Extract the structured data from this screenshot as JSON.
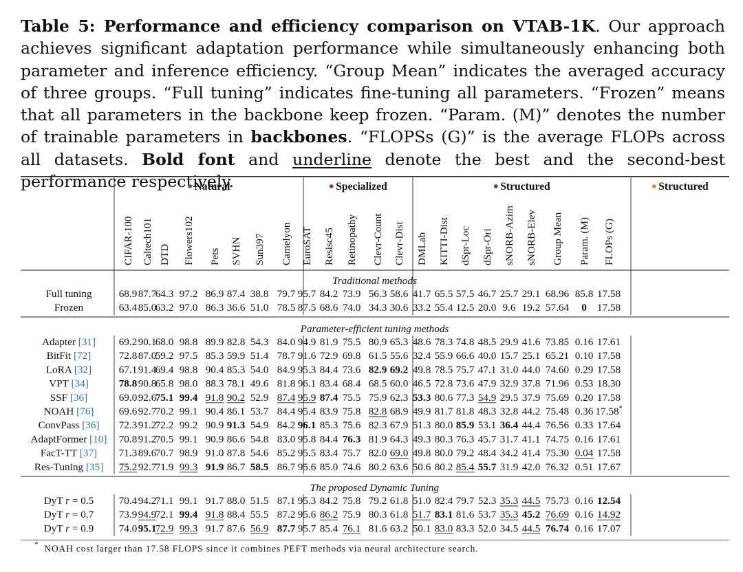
{
  "caption": {
    "label": "Table 5: Performance and efficiency comparison on VTAB-1K",
    "text1": ". Our approach achieves significant adaptation performance while simultaneously enhancing both parameter and inference efficiency. “Group Mean” indicates the averaged accuracy of three groups. “Full tuning” indicates fine-tuning all parameters. “Frozen” means that all parameters in the backbone keep frozen. “Param. (M)” denotes the number of trainable parameters in ",
    "bold_backbones": "backbones",
    "text2": ". “FLOPSs (G)” is the average FLOPs across all datasets. ",
    "bold_font": "Bold font",
    "text3": " and ",
    "underline_word": "underline",
    "text4": " denote the best and the second-best performance respectively."
  },
  "groups": [
    {
      "label": "Natural",
      "dot_color": "#2e7d5b"
    },
    {
      "label": "Specialized",
      "dot_color": "#a23a2e"
    },
    {
      "label": "Structured",
      "dot_color": "#1f5f8b"
    },
    {
      "label": "Structured",
      "dot_color": "#d08a3a"
    }
  ],
  "columns": [
    "CIFAR-100",
    "Caltech101",
    "DTD",
    "Flowers102",
    "Pets",
    "SVHN",
    "Sun397",
    "Camelyon",
    "EuroSAT",
    "Resisc45",
    "Retinopathy",
    "Clevr-Count",
    "Clevr-Dist",
    "DMLab",
    "KITTI-Dist",
    "dSpr-Loc",
    "dSpr-Ori",
    "sNORB-Azim",
    "sNORB-Elev",
    "Group Mean",
    "Param. (M)",
    "FLOPs (G)"
  ],
  "sections": [
    {
      "title": "Traditional methods",
      "rows": [
        {
          "method": "Full tuning",
          "ref": "",
          "suffix": "",
          "values": [
            "68.9",
            "87.7",
            "64.3",
            "97.2",
            "86.9",
            "87.4",
            "38.8",
            "79.7",
            "95.7",
            "84.2",
            "73.9",
            "56.3",
            "58.6",
            "41.7",
            "65.5",
            "57.5",
            "46.7",
            "25.7",
            "29.1",
            "68.96",
            "85.8",
            "17.58"
          ],
          "bold": [],
          "underline": []
        },
        {
          "method": "Frozen",
          "ref": "",
          "suffix": "",
          "values": [
            "63.4",
            "85.0",
            "63.2",
            "97.0",
            "86.3",
            "36.6",
            "51.0",
            "78.5",
            "87.5",
            "68.6",
            "74.0",
            "34.3",
            "30.6",
            "33.2",
            "55.4",
            "12.5",
            "20.0",
            "9.6",
            "19.2",
            "57.64",
            "0",
            "17.58"
          ],
          "bold": [
            20
          ],
          "underline": []
        }
      ]
    },
    {
      "title": "Parameter-efficient tuning methods",
      "rows": [
        {
          "method": "Adapter",
          "ref": "[31]",
          "suffix": "",
          "values": [
            "69.2",
            "90.1",
            "68.0",
            "98.8",
            "89.9",
            "82.8",
            "54.3",
            "84.0",
            "94.9",
            "81.9",
            "75.5",
            "80.9",
            "65.3",
            "48.6",
            "78.3",
            "74.8",
            "48.5",
            "29.9",
            "41.6",
            "73.85",
            "0.16",
            "17.61"
          ],
          "bold": [],
          "underline": []
        },
        {
          "method": "BitFit",
          "ref": "[72]",
          "suffix": "",
          "values": [
            "72.8",
            "87.0",
            "59.2",
            "97.5",
            "85.3",
            "59.9",
            "51.4",
            "78.7",
            "91.6",
            "72.9",
            "69.8",
            "61.5",
            "55.6",
            "32.4",
            "55.9",
            "66.6",
            "40.0",
            "15.7",
            "25.1",
            "65.21",
            "0.10",
            "17.58"
          ],
          "bold": [],
          "underline": []
        },
        {
          "method": "LoRA",
          "ref": "[32]",
          "suffix": "",
          "values": [
            "67.1",
            "91.4",
            "69.4",
            "98.8",
            "90.4",
            "85.3",
            "54.0",
            "84.9",
            "95.3",
            "84.4",
            "73.6",
            "82.9",
            "69.2",
            "49.8",
            "78.5",
            "75.7",
            "47.1",
            "31.0",
            "44.0",
            "74.60",
            "0.29",
            "17.58"
          ],
          "bold": [
            11,
            12
          ],
          "underline": []
        },
        {
          "method": "VPT",
          "ref": "[34]",
          "suffix": "",
          "values": [
            "78.8",
            "90.8",
            "65.8",
            "98.0",
            "88.3",
            "78.1",
            "49.6",
            "81.8",
            "96.1",
            "83.4",
            "68.4",
            "68.5",
            "60.0",
            "46.5",
            "72.8",
            "73.6",
            "47.9",
            "32.9",
            "37.8",
            "71.96",
            "0.53",
            "18.30"
          ],
          "bold": [
            0
          ],
          "underline": []
        },
        {
          "method": "SSF",
          "ref": "[36]",
          "suffix": "",
          "values": [
            "69.0",
            "92.6",
            "75.1",
            "99.4",
            "91.8",
            "90.2",
            "52.9",
            "87.4",
            "95.9",
            "87.4",
            "75.5",
            "75.9",
            "62.3",
            "53.3",
            "80.6",
            "77.3",
            "54.9",
            "29.5",
            "37.9",
            "75.69",
            "0.20",
            "17.58"
          ],
          "bold": [
            2,
            3,
            9,
            13
          ],
          "underline": [
            4,
            5,
            7,
            8,
            16
          ]
        },
        {
          "method": "NOAH",
          "ref": "[76]",
          "suffix": "",
          "values": [
            "69.6",
            "92.7",
            "70.2",
            "99.1",
            "90.4",
            "86.1",
            "53.7",
            "84.4",
            "95.4",
            "83.9",
            "75.8",
            "82.8",
            "68.9",
            "49.9",
            "81.7",
            "81.8",
            "48.3",
            "32.8",
            "44.2",
            "75.48",
            "0.36",
            "17.58*"
          ],
          "bold": [],
          "underline": [
            11
          ]
        },
        {
          "method": "ConvPass",
          "ref": "[36]",
          "suffix": "",
          "values": [
            "72.3",
            "91.2",
            "72.2",
            "99.2",
            "90.9",
            "91.3",
            "54.9",
            "84.2",
            "96.1",
            "85.3",
            "75.6",
            "82.3",
            "67.9",
            "51.3",
            "80.0",
            "85.9",
            "53.1",
            "36.4",
            "44.4",
            "76.56",
            "0.33",
            "17.64"
          ],
          "bold": [
            5,
            8,
            15,
            17
          ],
          "underline": []
        },
        {
          "method": "AdaptFormer",
          "ref": "[10]",
          "suffix": "",
          "values": [
            "70.8",
            "91.2",
            "70.5",
            "99.1",
            "90.9",
            "86.6",
            "54.8",
            "83.0",
            "95.8",
            "84.4",
            "76.3",
            "81.9",
            "64.3",
            "49.3",
            "80.3",
            "76.3",
            "45.7",
            "31.7",
            "41.1",
            "74.75",
            "0.16",
            "17.61"
          ],
          "bold": [
            10
          ],
          "underline": []
        },
        {
          "method": "FacT-TT",
          "ref": "[37]",
          "suffix": "",
          "values": [
            "71.3",
            "89.6",
            "70.7",
            "98.9",
            "91.0",
            "87.8",
            "54.6",
            "85.2",
            "95.5",
            "83.4",
            "75.7",
            "82.0",
            "69.0",
            "49.8",
            "80.0",
            "79.2",
            "48.4",
            "34.2",
            "41.4",
            "75.30",
            "0.04",
            "17.58"
          ],
          "bold": [],
          "underline": [
            12,
            20
          ]
        },
        {
          "method": "Res-Tuning",
          "ref": "[35]",
          "suffix": "",
          "values": [
            "75.2",
            "92.7",
            "71.9",
            "99.3",
            "91.9",
            "86.7",
            "58.5",
            "86.7",
            "95.6",
            "85.0",
            "74.6",
            "80.2",
            "63.6",
            "50.6",
            "80.2",
            "85.4",
            "55.7",
            "31.9",
            "42.0",
            "76.32",
            "0.51",
            "17.67"
          ],
          "bold": [
            4,
            6,
            16
          ],
          "underline": [
            0,
            3,
            15
          ]
        }
      ]
    },
    {
      "title": "The proposed Dynamic Tuning",
      "rows": [
        {
          "method": "DyT",
          "ref": "",
          "suffix": "r = 0.5",
          "values": [
            "70.4",
            "94.2",
            "71.1",
            "99.1",
            "91.7",
            "88.0",
            "51.5",
            "87.1",
            "95.3",
            "84.2",
            "75.8",
            "79.2",
            "61.8",
            "51.0",
            "82.4",
            "79.7",
            "52.3",
            "35.3",
            "44.5",
            "75.73",
            "0.16",
            "12.54"
          ],
          "bold": [
            21
          ],
          "underline": [
            17,
            18
          ]
        },
        {
          "method": "DyT",
          "ref": "",
          "suffix": "r = 0.7",
          "values": [
            "73.9",
            "94.9",
            "72.1",
            "99.4",
            "91.8",
            "88.4",
            "55.5",
            "87.2",
            "95.6",
            "86.2",
            "75.9",
            "80.3",
            "61.8",
            "51.7",
            "83.1",
            "81.6",
            "53.7",
            "35.3",
            "45.2",
            "76.69",
            "0.16",
            "14.92"
          ],
          "bold": [
            3,
            14,
            18
          ],
          "underline": [
            1,
            4,
            9,
            13,
            17,
            19,
            21
          ]
        },
        {
          "method": "DyT",
          "ref": "",
          "suffix": "r = 0.9",
          "values": [
            "74.0",
            "95.1",
            "72.9",
            "99.3",
            "91.7",
            "87.6",
            "56.9",
            "87.7",
            "95.7",
            "85.4",
            "76.1",
            "81.6",
            "63.2",
            "50.1",
            "83.0",
            "83.3",
            "52.0",
            "34.5",
            "44.5",
            "76.74",
            "0.16",
            "17.07"
          ],
          "bold": [
            1,
            7,
            19
          ],
          "underline": [
            2,
            3,
            6,
            10,
            14,
            18
          ]
        }
      ]
    }
  ],
  "footnote": {
    "marker": "*",
    "text": "NOAH cost larger than 17.58 FLOPS since it combines PEFT methods via neural architecture search."
  }
}
